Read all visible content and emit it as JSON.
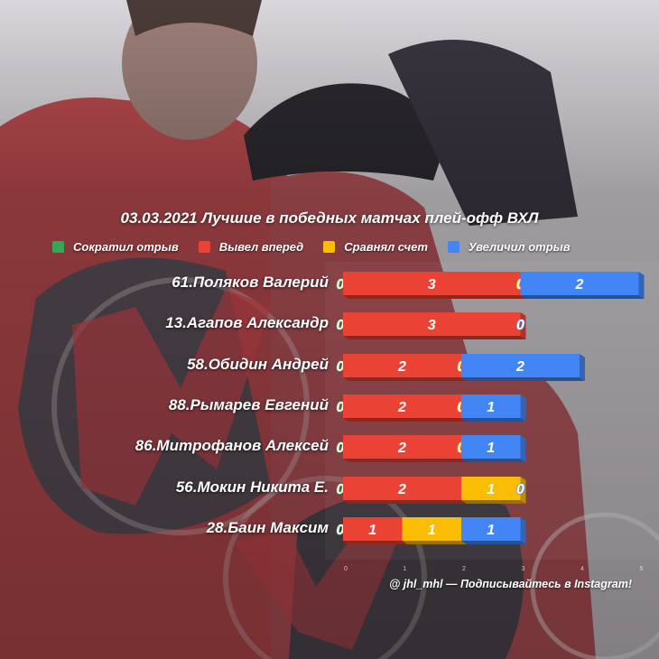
{
  "title": "03.03.2021 Лучшие в победных матчах плей-офф ВХЛ",
  "legend": [
    {
      "label": "Сократил отрыв",
      "color": "#34a853"
    },
    {
      "label": "Вывел вперед",
      "color": "#ea4335"
    },
    {
      "label": "Сравнял счет",
      "color": "#fbbc04"
    },
    {
      "label": "Увеличил отрыв",
      "color": "#4285f4"
    }
  ],
  "credit": "@ jhl_mhl — Подписывайтесь в Instagram!",
  "chart_data": {
    "type": "bar",
    "orientation": "horizontal",
    "stacked": true,
    "title": "03.03.2021 Лучшие в победных матчах плей-офф ВХЛ",
    "categories": [
      "61.Поляков Валерий",
      "13.Агапов Александр",
      "58.Обидин Андрей",
      "88.Рымарев Евгений",
      "86.Митрофанов Алексей",
      "56.Мокин Никита Е.",
      "28.Баин Максим"
    ],
    "series": [
      {
        "name": "Сократил отрыв",
        "color": "#34a853",
        "values": [
          0,
          0,
          0,
          0,
          0,
          0,
          0
        ]
      },
      {
        "name": "Вывел вперед",
        "color": "#ea4335",
        "values": [
          3,
          3,
          2,
          2,
          2,
          2,
          1
        ]
      },
      {
        "name": "Сравнял счет",
        "color": "#fbbc04",
        "values": [
          0,
          0,
          0,
          0,
          0,
          1,
          1
        ]
      },
      {
        "name": "Увеличил отрыв",
        "color": "#4285f4",
        "values": [
          2,
          0,
          2,
          1,
          1,
          0,
          1
        ]
      }
    ],
    "xlim": [
      0,
      5
    ],
    "xticks": [
      "0",
      "1",
      "2",
      "3",
      "4",
      "5"
    ],
    "grid": false,
    "legend_position": "top"
  }
}
